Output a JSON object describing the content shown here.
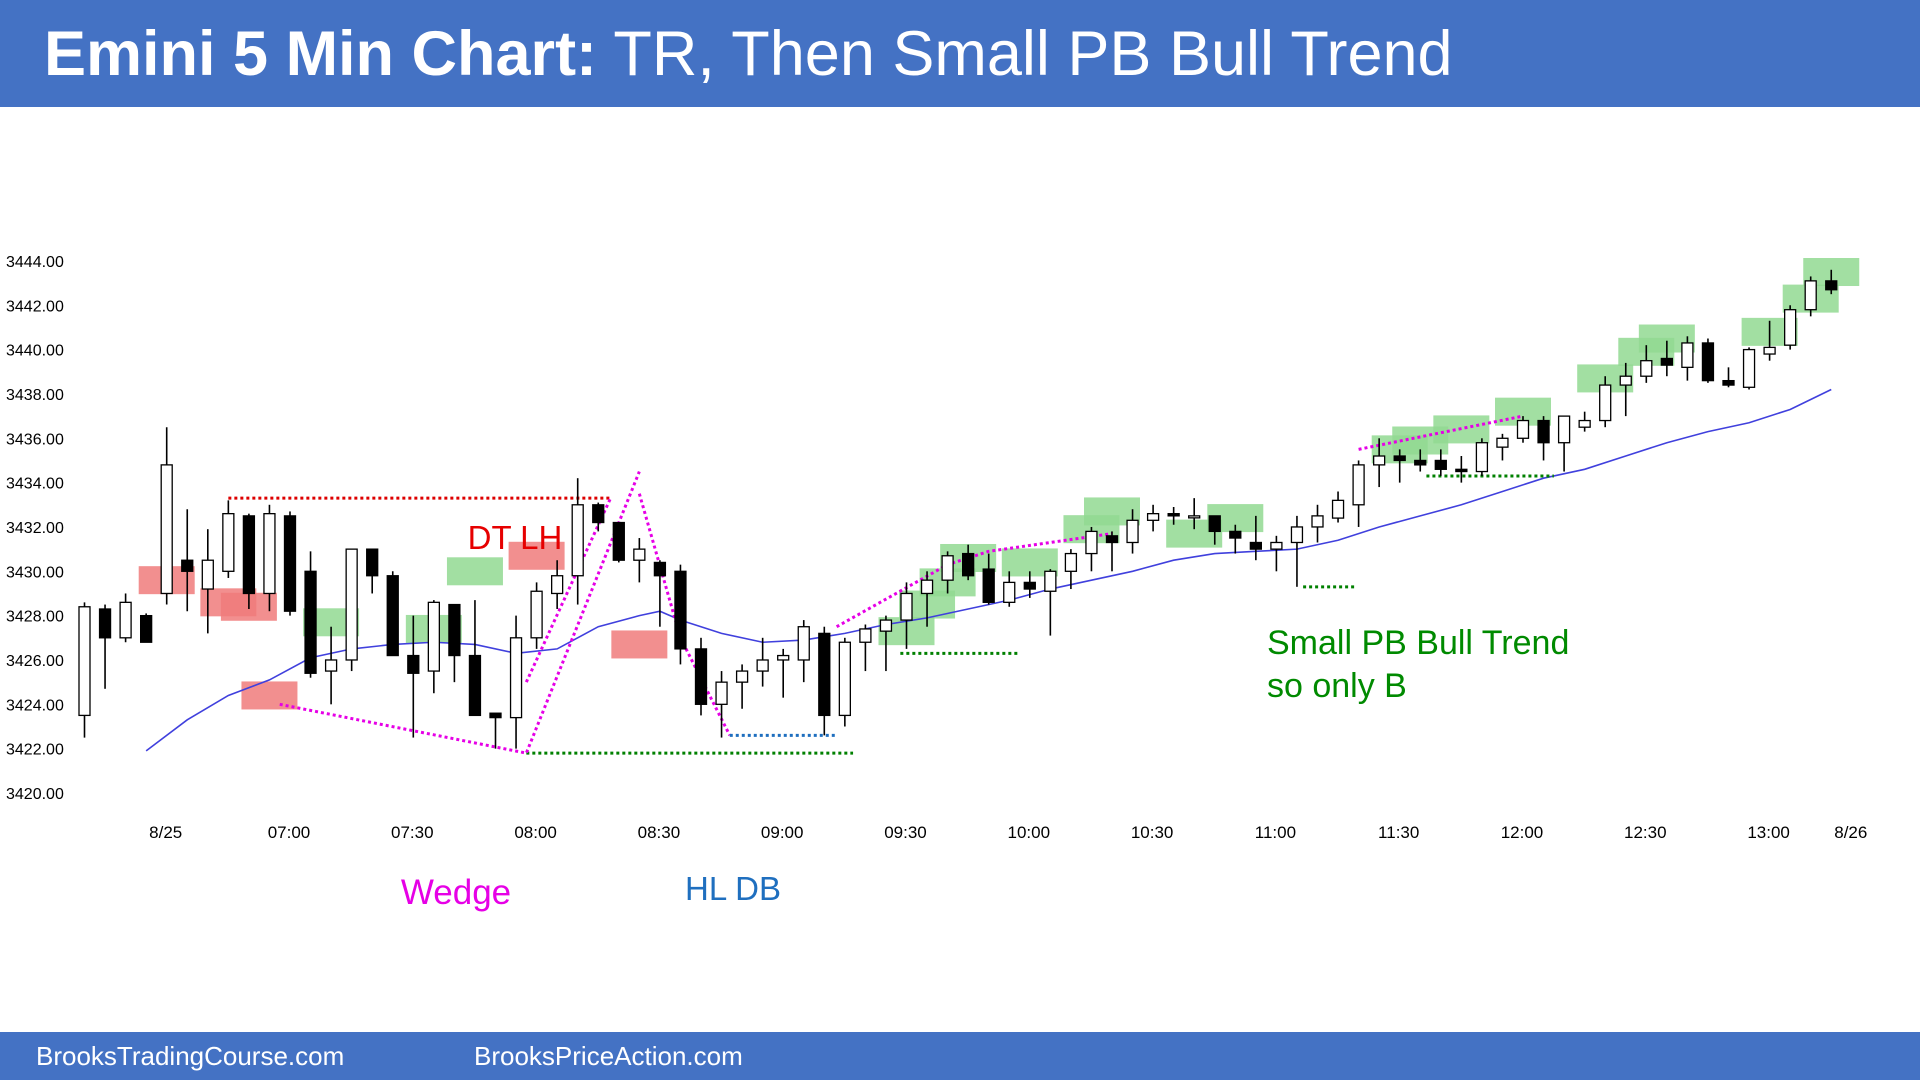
{
  "header": {
    "title_bold": "Emini 5 Min Chart:",
    "title_rest": " TR, Then Small PB Bull Trend",
    "background": "#4472c4"
  },
  "footer": {
    "link_left": "BrooksTradingCourse.com",
    "link_right": "BrooksPriceAction.com"
  },
  "colors": {
    "bull_highlight": "#92d992",
    "bear_highlight": "#f07b7b",
    "ema": "#4040dd",
    "dotted_red": "#dd0000",
    "dotted_magenta": "#e600e6",
    "dotted_green": "#008000",
    "dotted_blue": "#1f6fbf"
  },
  "chart_data": {
    "type": "candlestick",
    "instrument": "Emini",
    "timeframe": "5 Min",
    "ylim": [
      3419.5,
      3447.5
    ],
    "y_ticks": [
      "3420.00",
      "3422.00",
      "3424.00",
      "3426.00",
      "3428.00",
      "3430.00",
      "3432.00",
      "3434.00",
      "3436.00",
      "3438.00",
      "3440.00",
      "3442.00",
      "3444.00"
    ],
    "x_ticks": [
      {
        "bar": 4,
        "label": "8/25"
      },
      {
        "bar": 10,
        "label": "07:00"
      },
      {
        "bar": 16,
        "label": "07:30"
      },
      {
        "bar": 22,
        "label": "08:00"
      },
      {
        "bar": 28,
        "label": "08:30"
      },
      {
        "bar": 34,
        "label": "09:00"
      },
      {
        "bar": 40,
        "label": "09:30"
      },
      {
        "bar": 46,
        "label": "10:00"
      },
      {
        "bar": 52,
        "label": "10:30"
      },
      {
        "bar": 58,
        "label": "11:00"
      },
      {
        "bar": 64,
        "label": "11:30"
      },
      {
        "bar": 70,
        "label": "12:00"
      },
      {
        "bar": 76,
        "label": "12:30"
      },
      {
        "bar": 82,
        "label": "13:00"
      },
      {
        "bar": 86,
        "label": "8/26"
      }
    ],
    "ohlc": [
      [
        3423.5,
        3428.6,
        3422.5,
        3428.4
      ],
      [
        3428.3,
        3428.5,
        3424.7,
        3427.0
      ],
      [
        3427.0,
        3429.0,
        3426.8,
        3428.6
      ],
      [
        3428.0,
        3428.1,
        3426.8,
        3426.8
      ],
      [
        3429.0,
        3436.5,
        3428.5,
        3434.8
      ],
      [
        3430.5,
        3432.8,
        3428.2,
        3430.0
      ],
      [
        3429.2,
        3431.9,
        3427.2,
        3430.5
      ],
      [
        3430.0,
        3433.2,
        3429.7,
        3432.6
      ],
      [
        3432.5,
        3432.6,
        3428.3,
        3429.0
      ],
      [
        3429.0,
        3433.0,
        3428.2,
        3432.6
      ],
      [
        3432.5,
        3432.7,
        3428.0,
        3428.2
      ],
      [
        3430.0,
        3430.9,
        3425.2,
        3425.4
      ],
      [
        3425.5,
        3427.5,
        3424.0,
        3426.0
      ],
      [
        3426.0,
        3431.0,
        3425.5,
        3431.0
      ],
      [
        3431.0,
        3431.0,
        3429.0,
        3429.8
      ],
      [
        3429.8,
        3430.0,
        3426.2,
        3426.2
      ],
      [
        3426.2,
        3428.0,
        3422.5,
        3425.4
      ],
      [
        3425.5,
        3428.7,
        3424.5,
        3428.6
      ],
      [
        3428.5,
        3428.5,
        3425.0,
        3426.2
      ],
      [
        3426.2,
        3428.7,
        3423.5,
        3423.5
      ],
      [
        3423.6,
        3423.6,
        3422.0,
        3423.4
      ],
      [
        3423.4,
        3428.0,
        3422.0,
        3427.0
      ],
      [
        3427.0,
        3429.5,
        3426.5,
        3429.1
      ],
      [
        3429.0,
        3430.5,
        3428.3,
        3429.8
      ],
      [
        3429.8,
        3434.2,
        3428.5,
        3433.0
      ],
      [
        3433.0,
        3433.1,
        3431.8,
        3432.2
      ],
      [
        3432.2,
        3432.2,
        3430.4,
        3430.5
      ],
      [
        3430.5,
        3431.5,
        3429.5,
        3431.0
      ],
      [
        3430.4,
        3430.5,
        3427.5,
        3429.8
      ],
      [
        3430.0,
        3430.3,
        3425.8,
        3426.5
      ],
      [
        3426.5,
        3427.0,
        3423.5,
        3424.0
      ],
      [
        3424.0,
        3425.5,
        3422.5,
        3425.0
      ],
      [
        3425.0,
        3425.8,
        3423.8,
        3425.5
      ],
      [
        3425.5,
        3427.0,
        3424.8,
        3426.0
      ],
      [
        3426.0,
        3426.5,
        3424.3,
        3426.2
      ],
      [
        3426.0,
        3427.8,
        3425.0,
        3427.5
      ],
      [
        3427.2,
        3427.5,
        3422.6,
        3423.5
      ],
      [
        3423.5,
        3427.0,
        3423.0,
        3426.8
      ],
      [
        3426.8,
        3427.6,
        3425.5,
        3427.4
      ],
      [
        3427.3,
        3428.0,
        3425.5,
        3427.8
      ],
      [
        3427.8,
        3429.5,
        3426.5,
        3429.0
      ],
      [
        3429.0,
        3430.0,
        3427.5,
        3429.6
      ],
      [
        3429.6,
        3430.9,
        3429.0,
        3430.7
      ],
      [
        3430.8,
        3431.2,
        3429.6,
        3429.8
      ],
      [
        3430.1,
        3430.8,
        3428.5,
        3428.6
      ],
      [
        3428.6,
        3430.0,
        3428.4,
        3429.5
      ],
      [
        3429.5,
        3430.0,
        3428.8,
        3429.2
      ],
      [
        3429.1,
        3430.1,
        3427.1,
        3430.0
      ],
      [
        3430.0,
        3431.0,
        3429.2,
        3430.8
      ],
      [
        3430.8,
        3432.0,
        3430.0,
        3431.8
      ],
      [
        3431.6,
        3431.8,
        3430.0,
        3431.3
      ],
      [
        3431.3,
        3432.8,
        3430.8,
        3432.3
      ],
      [
        3432.3,
        3433.0,
        3431.8,
        3432.6
      ],
      [
        3432.6,
        3432.9,
        3432.1,
        3432.5
      ],
      [
        3432.5,
        3433.3,
        3431.9,
        3432.5
      ],
      [
        3432.5,
        3432.5,
        3431.2,
        3431.8
      ],
      [
        3431.8,
        3432.1,
        3430.8,
        3431.5
      ],
      [
        3431.3,
        3432.5,
        3430.5,
        3431.0
      ],
      [
        3431.0,
        3431.6,
        3430.0,
        3431.3
      ],
      [
        3431.3,
        3432.5,
        3429.3,
        3432.0
      ],
      [
        3432.0,
        3433.0,
        3431.3,
        3432.5
      ],
      [
        3432.4,
        3433.6,
        3432.2,
        3433.2
      ],
      [
        3433.0,
        3435.0,
        3432.0,
        3434.8
      ],
      [
        3434.8,
        3436.0,
        3433.8,
        3435.2
      ],
      [
        3435.2,
        3435.5,
        3434.0,
        3435.0
      ],
      [
        3435.0,
        3435.5,
        3434.5,
        3434.8
      ],
      [
        3435.0,
        3435.5,
        3434.3,
        3434.6
      ],
      [
        3434.6,
        3435.2,
        3434.0,
        3434.5
      ],
      [
        3434.5,
        3436.0,
        3434.3,
        3435.8
      ],
      [
        3435.6,
        3436.2,
        3435.0,
        3436.0
      ],
      [
        3436.0,
        3437.0,
        3435.8,
        3436.8
      ],
      [
        3436.8,
        3437.0,
        3435.0,
        3435.8
      ],
      [
        3435.8,
        3437.0,
        3434.5,
        3437.0
      ],
      [
        3436.5,
        3437.2,
        3436.3,
        3436.8
      ],
      [
        3436.8,
        3438.8,
        3436.5,
        3438.4
      ],
      [
        3438.4,
        3439.4,
        3437.0,
        3438.8
      ],
      [
        3438.8,
        3440.2,
        3438.5,
        3439.5
      ],
      [
        3439.6,
        3440.4,
        3438.8,
        3439.3
      ],
      [
        3439.2,
        3440.6,
        3438.6,
        3440.3
      ],
      [
        3440.3,
        3440.5,
        3438.5,
        3438.6
      ],
      [
        3438.6,
        3439.2,
        3438.3,
        3438.4
      ],
      [
        3438.3,
        3440.1,
        3438.2,
        3440.0
      ],
      [
        3439.8,
        3441.3,
        3439.5,
        3440.1
      ],
      [
        3440.2,
        3442.0,
        3440.0,
        3441.8
      ],
      [
        3441.8,
        3443.3,
        3441.5,
        3443.1
      ],
      [
        3443.1,
        3443.6,
        3442.5,
        3442.7
      ]
    ],
    "ema": [
      [
        3,
        3421.9
      ],
      [
        5,
        3423.3
      ],
      [
        7,
        3424.4
      ],
      [
        9,
        3425.1
      ],
      [
        11,
        3426.1
      ],
      [
        13,
        3426.5
      ],
      [
        15,
        3426.7
      ],
      [
        17,
        3426.8
      ],
      [
        19,
        3426.7
      ],
      [
        21,
        3426.3
      ],
      [
        23,
        3426.5
      ],
      [
        25,
        3427.5
      ],
      [
        27,
        3428.0
      ],
      [
        28,
        3428.2
      ],
      [
        29,
        3427.8
      ],
      [
        31,
        3427.2
      ],
      [
        33,
        3426.8
      ],
      [
        35,
        3426.9
      ],
      [
        37,
        3427.2
      ],
      [
        39,
        3427.6
      ],
      [
        41,
        3427.9
      ],
      [
        43,
        3428.3
      ],
      [
        45,
        3428.7
      ],
      [
        47,
        3429.2
      ],
      [
        49,
        3429.6
      ],
      [
        51,
        3430.0
      ],
      [
        53,
        3430.5
      ],
      [
        55,
        3430.8
      ],
      [
        57,
        3430.9
      ],
      [
        59,
        3431.0
      ],
      [
        61,
        3431.4
      ],
      [
        63,
        3432.0
      ],
      [
        65,
        3432.5
      ],
      [
        67,
        3433.0
      ],
      [
        69,
        3433.6
      ],
      [
        71,
        3434.2
      ],
      [
        73,
        3434.6
      ],
      [
        75,
        3435.2
      ],
      [
        77,
        3435.8
      ],
      [
        79,
        3436.3
      ],
      [
        81,
        3436.7
      ],
      [
        83,
        3437.3
      ],
      [
        85,
        3438.2
      ]
    ],
    "highlights": {
      "bull": [
        [
          12,
          3427.7
        ],
        [
          17,
          3427.4
        ],
        [
          19,
          3430.0
        ],
        [
          40,
          3427.3
        ],
        [
          41,
          3428.5
        ],
        [
          42,
          3429.5
        ],
        [
          43,
          3430.6
        ],
        [
          46,
          3430.4
        ],
        [
          49,
          3431.9
        ],
        [
          50,
          3432.7
        ],
        [
          54,
          3431.7
        ],
        [
          56,
          3432.4
        ],
        [
          64,
          3435.5
        ],
        [
          65,
          3435.9
        ],
        [
          67,
          3436.4
        ],
        [
          70,
          3437.2
        ],
        [
          74,
          3438.7
        ],
        [
          76,
          3439.9
        ],
        [
          77,
          3440.5
        ],
        [
          82,
          3440.8
        ],
        [
          84,
          3442.3
        ],
        [
          85,
          3443.5
        ]
      ],
      "bear": [
        [
          4,
          3429.6
        ],
        [
          7,
          3428.6
        ],
        [
          8,
          3428.4
        ],
        [
          9,
          3424.4
        ],
        [
          22,
          3430.7
        ],
        [
          27,
          3426.7
        ]
      ]
    },
    "lines": {
      "tr_high": {
        "from_bar": 7,
        "to_bar": 25.6,
        "y": 3433.3
      },
      "tr_low": {
        "from_bar": 21.5,
        "to_bar": 37.4,
        "y": 3421.8
      },
      "wedge": {
        "points": [
          [
            9.5,
            3424.0
          ],
          [
            21.5,
            3421.8
          ],
          [
            27,
            3434.5
          ]
        ]
      },
      "wedge_top": {
        "points": [
          [
            21.5,
            3425.0
          ],
          [
            25.6,
            3433.3
          ]
        ]
      },
      "decline": {
        "points": [
          [
            27,
            3433.5
          ],
          [
            29,
            3427.0
          ],
          [
            31.4,
            3422.6
          ]
        ]
      },
      "hl_db": {
        "from_bar": 31.4,
        "to_bar": 36.6,
        "y": 3422.6
      },
      "channel": {
        "points": [
          [
            36.6,
            3427.5
          ],
          [
            42,
            3430.3
          ],
          [
            44,
            3430.9
          ],
          [
            50,
            3431.7
          ]
        ]
      },
      "channel_upper": {
        "points": [
          [
            62,
            3435.5
          ],
          [
            70,
            3437.0
          ]
        ]
      },
      "pb1": {
        "from_bar": 39.7,
        "to_bar": 45.5,
        "y": 3426.3
      },
      "pb2": {
        "from_bar": 59.3,
        "to_bar": 61.8,
        "y": 3429.3
      },
      "pb3": {
        "from_bar": 65.3,
        "to_bar": 71.5,
        "y": 3434.3
      }
    },
    "annotations": {
      "dt_lh": "DT LH",
      "wedge": "Wedge",
      "hl_db": "HL DB",
      "trend_line1": "Small PB Bull Trend",
      "trend_line2": "so only B"
    }
  }
}
